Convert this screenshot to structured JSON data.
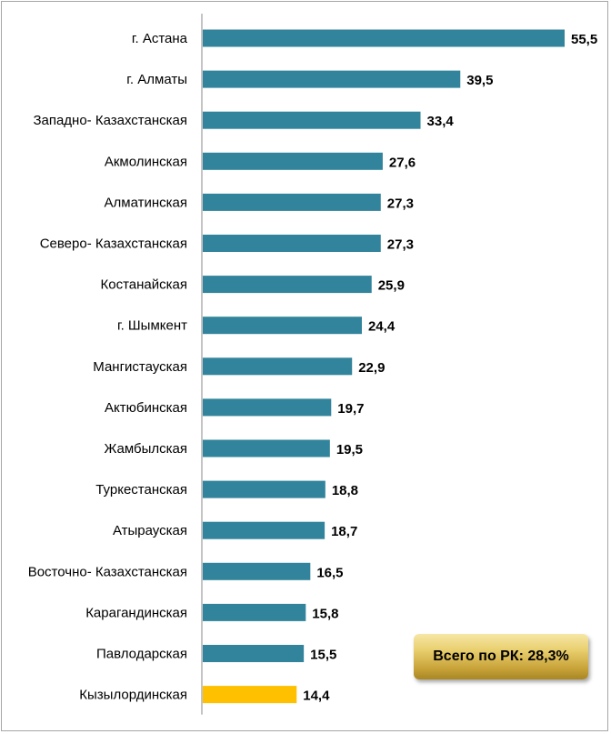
{
  "chart_data": {
    "type": "bar",
    "orientation": "horizontal",
    "categories": [
      "г. Астана",
      "г. Алматы",
      "Западно- Казахстанская",
      "Акмолинская",
      "Алматинская",
      "Северо- Казахстанская",
      "Костанайская",
      "г. Шымкент",
      "Мангистауская",
      "Актюбинская",
      "Жамбылская",
      "Туркестанская",
      "Атырауская",
      "Восточно- Казахстанская",
      "Карагандинская",
      "Павлодарская",
      "Кызылординская"
    ],
    "values": [
      55.5,
      39.5,
      33.4,
      27.6,
      27.3,
      27.3,
      25.9,
      24.4,
      22.9,
      19.7,
      19.5,
      18.8,
      18.7,
      16.5,
      15.8,
      15.5,
      14.4
    ],
    "value_labels": [
      "55,5",
      "39,5",
      "33,4",
      "27,6",
      "27,3",
      "27,3",
      "25,9",
      "24,4",
      "22,9",
      "19,7",
      "19,5",
      "18,8",
      "18,7",
      "16,5",
      "15,8",
      "15,5",
      "14,4"
    ],
    "highlight_index": 16,
    "xlim": [
      0,
      55.5
    ],
    "grid": false,
    "colors": {
      "bar": "#31849b",
      "highlight": "#ffc000",
      "axis": "#888888"
    }
  },
  "summary_box": {
    "text": "Всего по РК: 28,3%"
  }
}
